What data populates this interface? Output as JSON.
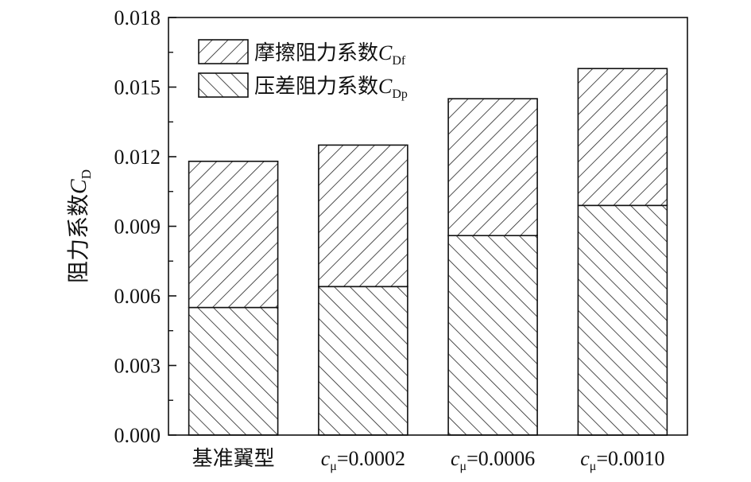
{
  "chart_data": {
    "type": "bar",
    "stacked": true,
    "categories": [
      {
        "text": "基准翼型"
      },
      {
        "sym": "c",
        "sub": "μ",
        "rest": "=0.0002"
      },
      {
        "sym": "c",
        "sub": "μ",
        "rest": "=0.0006"
      },
      {
        "sym": "c",
        "sub": "μ",
        "rest": "=0.0010"
      }
    ],
    "series": [
      {
        "name": "压差阻力系数",
        "sym": "C",
        "sub": "Dp",
        "pattern": "backslash",
        "values": [
          0.0055,
          0.0064,
          0.0086,
          0.0099
        ]
      },
      {
        "name": "摩擦阻力系数",
        "sym": "C",
        "sub": "Df",
        "pattern": "slash",
        "values": [
          0.0063,
          0.0061,
          0.0059,
          0.0059
        ]
      }
    ],
    "ylabel": {
      "text": "阻力系数",
      "sym": "C",
      "sub": "D"
    },
    "ylim": [
      0,
      0.018
    ],
    "yticks": [
      "0.000",
      "0.003",
      "0.006",
      "0.009",
      "0.012",
      "0.015",
      "0.018"
    ],
    "grid": false,
    "legend": "top-left",
    "legend_order": [
      1,
      0
    ]
  }
}
